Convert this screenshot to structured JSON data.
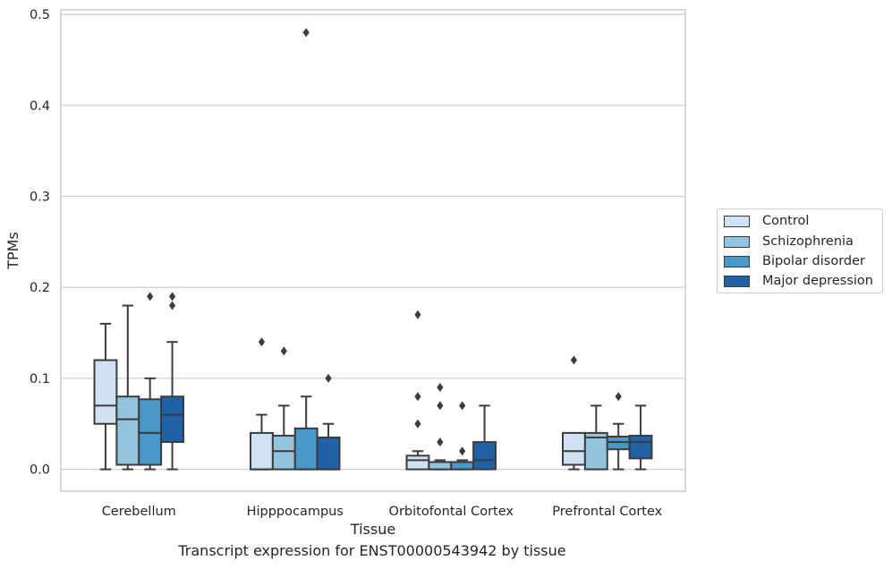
{
  "chart_data": {
    "type": "boxplot",
    "xlabel": "Tissue",
    "ylabel": "TPMs",
    "ylim": [
      -0.024,
      0.505
    ],
    "yticks": [
      "0.0",
      "0.1",
      "0.2",
      "0.3",
      "0.4",
      "0.5"
    ],
    "grid": true,
    "legend_position": "right",
    "categories": [
      "Cerebellum",
      "Hipppocampus",
      "Orbitofontal Cortex",
      "Prefrontal Cortex"
    ],
    "series": [
      {
        "name": "Control",
        "color": "#cfe1f2",
        "boxes": [
          {
            "min": 0.0,
            "q1": 0.05,
            "median": 0.07,
            "q3": 0.12,
            "max": 0.16,
            "outliers": []
          },
          {
            "min": 0.0,
            "q1": 0.0,
            "median": 0.0,
            "q3": 0.04,
            "max": 0.06,
            "outliers": [
              0.14
            ]
          },
          {
            "min": 0.0,
            "q1": 0.0,
            "median": 0.01,
            "q3": 0.015,
            "max": 0.02,
            "outliers": [
              0.05,
              0.08,
              0.17
            ]
          },
          {
            "min": 0.0,
            "q1": 0.005,
            "median": 0.02,
            "q3": 0.04,
            "max": 0.04,
            "outliers": [
              0.12
            ]
          }
        ]
      },
      {
        "name": "Schizophrenia",
        "color": "#93c4de",
        "boxes": [
          {
            "min": 0.0,
            "q1": 0.005,
            "median": 0.055,
            "q3": 0.08,
            "max": 0.18,
            "outliers": []
          },
          {
            "min": 0.0,
            "q1": 0.0,
            "median": 0.02,
            "q3": 0.037,
            "max": 0.07,
            "outliers": [
              0.13
            ]
          },
          {
            "min": 0.0,
            "q1": 0.0,
            "median": 0.0,
            "q3": 0.008,
            "max": 0.01,
            "outliers": [
              0.03,
              0.07,
              0.09
            ]
          },
          {
            "min": 0.0,
            "q1": 0.0,
            "median": 0.035,
            "q3": 0.04,
            "max": 0.07,
            "outliers": []
          }
        ]
      },
      {
        "name": "Bipolar disorder",
        "color": "#4a98c9",
        "boxes": [
          {
            "min": 0.0,
            "q1": 0.005,
            "median": 0.04,
            "q3": 0.077,
            "max": 0.1,
            "outliers": [
              0.19
            ]
          },
          {
            "min": 0.0,
            "q1": 0.0,
            "median": 0.0,
            "q3": 0.045,
            "max": 0.08,
            "outliers": [
              0.48
            ]
          },
          {
            "min": 0.0,
            "q1": 0.0,
            "median": 0.0,
            "q3": 0.008,
            "max": 0.01,
            "outliers": [
              0.02,
              0.07
            ]
          },
          {
            "min": 0.0,
            "q1": 0.022,
            "median": 0.03,
            "q3": 0.036,
            "max": 0.05,
            "outliers": [
              0.08
            ]
          }
        ]
      },
      {
        "name": "Major depression",
        "color": "#1f62a7",
        "boxes": [
          {
            "min": 0.0,
            "q1": 0.03,
            "median": 0.06,
            "q3": 0.08,
            "max": 0.14,
            "outliers": [
              0.18,
              0.19
            ]
          },
          {
            "min": 0.0,
            "q1": 0.0,
            "median": 0.0,
            "q3": 0.035,
            "max": 0.05,
            "outliers": [
              0.1
            ]
          },
          {
            "min": 0.0,
            "q1": 0.0,
            "median": 0.01,
            "q3": 0.03,
            "max": 0.07,
            "outliers": []
          },
          {
            "min": 0.0,
            "q1": 0.012,
            "median": 0.03,
            "q3": 0.037,
            "max": 0.07,
            "outliers": []
          }
        ]
      }
    ]
  },
  "caption": "Transcript expression for ENST00000543942 by tissue"
}
